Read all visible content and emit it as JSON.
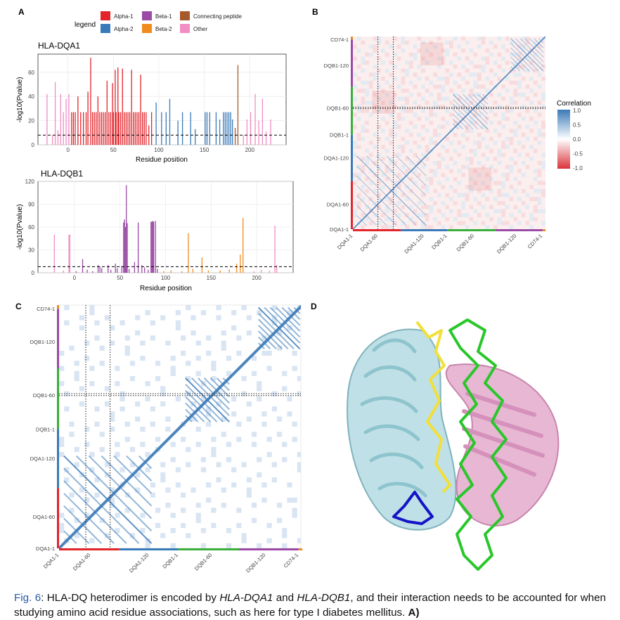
{
  "panel_labels": {
    "a": "A",
    "b": "B",
    "c": "C",
    "d": "D"
  },
  "legend": {
    "title": "legend",
    "items": [
      {
        "label": "Alpha-1",
        "color": "#e3242b"
      },
      {
        "label": "Alpha-2",
        "color": "#3a7ab8"
      },
      {
        "label": "Beta-1",
        "color": "#9b4ba6"
      },
      {
        "label": "Beta-2",
        "color": "#f08c1e"
      },
      {
        "label": "Connecting peptide",
        "color": "#a65a2c"
      },
      {
        "label": "Other",
        "color": "#f28dc4"
      }
    ]
  },
  "chart_data": [
    {
      "id": "dqa1",
      "type": "bar",
      "title": "HLA-DQA1",
      "xlabel": "Residue position",
      "ylabel": "-log10(Pvalue)",
      "xlim": [
        -33,
        240
      ],
      "ylim": [
        0,
        75
      ],
      "xticks": [
        0,
        50,
        100,
        150,
        200
      ],
      "yticks": [
        0,
        20,
        40,
        60
      ],
      "threshold": 8,
      "bars": [
        {
          "x": -23,
          "v": 42,
          "r": "Other"
        },
        {
          "x": -17,
          "v": 8,
          "r": "Other"
        },
        {
          "x": -14,
          "v": 52,
          "r": "Other"
        },
        {
          "x": -11,
          "v": 12,
          "r": "Other"
        },
        {
          "x": -8,
          "v": 42,
          "r": "Other"
        },
        {
          "x": -5,
          "v": 27,
          "r": "Other"
        },
        {
          "x": -2,
          "v": 38,
          "r": "Other"
        },
        {
          "x": 1,
          "v": 42,
          "r": "Other"
        },
        {
          "x": 4,
          "v": 27,
          "r": "Alpha-1"
        },
        {
          "x": 6,
          "v": 27,
          "r": "Alpha-1"
        },
        {
          "x": 8,
          "v": 27,
          "r": "Alpha-1"
        },
        {
          "x": 11,
          "v": 40,
          "r": "Alpha-1"
        },
        {
          "x": 14,
          "v": 27,
          "r": "Alpha-1"
        },
        {
          "x": 17,
          "v": 27,
          "r": "Alpha-1"
        },
        {
          "x": 20,
          "v": 27,
          "r": "Alpha-1"
        },
        {
          "x": 22,
          "v": 44,
          "r": "Alpha-1"
        },
        {
          "x": 25,
          "v": 72,
          "r": "Alpha-1"
        },
        {
          "x": 27,
          "v": 27,
          "r": "Alpha-1"
        },
        {
          "x": 29,
          "v": 27,
          "r": "Alpha-1"
        },
        {
          "x": 31,
          "v": 27,
          "r": "Alpha-1"
        },
        {
          "x": 33,
          "v": 40,
          "r": "Alpha-1"
        },
        {
          "x": 35,
          "v": 27,
          "r": "Alpha-1"
        },
        {
          "x": 37,
          "v": 27,
          "r": "Alpha-1"
        },
        {
          "x": 39,
          "v": 27,
          "r": "Alpha-1"
        },
        {
          "x": 41,
          "v": 27,
          "r": "Alpha-1"
        },
        {
          "x": 43,
          "v": 53,
          "r": "Alpha-1"
        },
        {
          "x": 45,
          "v": 27,
          "r": "Alpha-1"
        },
        {
          "x": 47,
          "v": 27,
          "r": "Alpha-1"
        },
        {
          "x": 49,
          "v": 51,
          "r": "Alpha-1"
        },
        {
          "x": 50,
          "v": 27,
          "r": "Alpha-1"
        },
        {
          "x": 52,
          "v": 62,
          "r": "Alpha-1"
        },
        {
          "x": 53,
          "v": 27,
          "r": "Alpha-1"
        },
        {
          "x": 55,
          "v": 64,
          "r": "Alpha-1"
        },
        {
          "x": 56,
          "v": 27,
          "r": "Alpha-1"
        },
        {
          "x": 58,
          "v": 27,
          "r": "Alpha-1"
        },
        {
          "x": 60,
          "v": 63,
          "r": "Alpha-1"
        },
        {
          "x": 62,
          "v": 27,
          "r": "Alpha-1"
        },
        {
          "x": 64,
          "v": 27,
          "r": "Alpha-1"
        },
        {
          "x": 66,
          "v": 27,
          "r": "Alpha-1"
        },
        {
          "x": 68,
          "v": 27,
          "r": "Alpha-1"
        },
        {
          "x": 70,
          "v": 62,
          "r": "Alpha-1"
        },
        {
          "x": 72,
          "v": 27,
          "r": "Alpha-1"
        },
        {
          "x": 74,
          "v": 27,
          "r": "Alpha-1"
        },
        {
          "x": 76,
          "v": 27,
          "r": "Alpha-1"
        },
        {
          "x": 78,
          "v": 27,
          "r": "Alpha-1"
        },
        {
          "x": 80,
          "v": 58,
          "r": "Alpha-1"
        },
        {
          "x": 82,
          "v": 27,
          "r": "Alpha-1"
        },
        {
          "x": 84,
          "v": 27,
          "r": "Alpha-1"
        },
        {
          "x": 86,
          "v": 27,
          "r": "Alpha-1"
        },
        {
          "x": 89,
          "v": 16,
          "r": "Alpha-1"
        },
        {
          "x": 92,
          "v": 27,
          "r": "Alpha-1"
        },
        {
          "x": 97,
          "v": 35,
          "r": "Alpha-2"
        },
        {
          "x": 103,
          "v": 27,
          "r": "Alpha-2"
        },
        {
          "x": 108,
          "v": 27,
          "r": "Alpha-2"
        },
        {
          "x": 112,
          "v": 38,
          "r": "Alpha-2"
        },
        {
          "x": 121,
          "v": 20,
          "r": "Alpha-2"
        },
        {
          "x": 126,
          "v": 27,
          "r": "Alpha-2"
        },
        {
          "x": 135,
          "v": 27,
          "r": "Alpha-2"
        },
        {
          "x": 140,
          "v": 13,
          "r": "Alpha-2"
        },
        {
          "x": 151,
          "v": 27,
          "r": "Alpha-2"
        },
        {
          "x": 153,
          "v": 27,
          "r": "Alpha-2"
        },
        {
          "x": 156,
          "v": 27,
          "r": "Alpha-2"
        },
        {
          "x": 163,
          "v": 27,
          "r": "Alpha-2"
        },
        {
          "x": 167,
          "v": 21,
          "r": "Alpha-2"
        },
        {
          "x": 171,
          "v": 27,
          "r": "Alpha-2"
        },
        {
          "x": 173,
          "v": 27,
          "r": "Alpha-2"
        },
        {
          "x": 175,
          "v": 27,
          "r": "Alpha-2"
        },
        {
          "x": 177,
          "v": 27,
          "r": "Alpha-2"
        },
        {
          "x": 179,
          "v": 27,
          "r": "Alpha-2"
        },
        {
          "x": 181,
          "v": 21,
          "r": "Alpha-2"
        },
        {
          "x": 184,
          "v": 14,
          "r": "Connecting peptide"
        },
        {
          "x": 187,
          "v": 66,
          "r": "Connecting peptide"
        },
        {
          "x": 193,
          "v": 8,
          "r": "Other"
        },
        {
          "x": 197,
          "v": 21,
          "r": "Other"
        },
        {
          "x": 201,
          "v": 27,
          "r": "Other"
        },
        {
          "x": 206,
          "v": 42,
          "r": "Other"
        },
        {
          "x": 210,
          "v": 20,
          "r": "Other"
        },
        {
          "x": 214,
          "v": 38,
          "r": "Other"
        },
        {
          "x": 218,
          "v": 11,
          "r": "Other"
        },
        {
          "x": 223,
          "v": 21,
          "r": "Other"
        }
      ]
    },
    {
      "id": "dqb1",
      "type": "bar",
      "title": "HLA-DQB1",
      "xlabel": "Residue position",
      "ylabel": "-log10(Pvalue)",
      "xlim": [
        -40,
        240
      ],
      "ylim": [
        0,
        120
      ],
      "xticks": [
        0,
        50,
        100,
        150,
        200
      ],
      "yticks": [
        0,
        30,
        60,
        90,
        120
      ],
      "threshold": 8,
      "bars": [
        {
          "x": -22,
          "v": 50,
          "r": "Other"
        },
        {
          "x": -12,
          "v": 3,
          "r": "Other"
        },
        {
          "x": -6,
          "v": 50,
          "r": "Other"
        },
        {
          "x": -5,
          "v": 50,
          "r": "Other"
        },
        {
          "x": 2,
          "v": 2,
          "r": "Beta-1"
        },
        {
          "x": 9,
          "v": 18,
          "r": "Beta-1"
        },
        {
          "x": 14,
          "v": 4,
          "r": "Beta-1"
        },
        {
          "x": 20,
          "v": 2,
          "r": "Beta-1"
        },
        {
          "x": 26,
          "v": 10,
          "r": "Beta-1"
        },
        {
          "x": 28,
          "v": 8,
          "r": "Beta-1"
        },
        {
          "x": 30,
          "v": 6,
          "r": "Beta-1"
        },
        {
          "x": 37,
          "v": 10,
          "r": "Beta-1"
        },
        {
          "x": 40,
          "v": 4,
          "r": "Beta-1"
        },
        {
          "x": 45,
          "v": 12,
          "r": "Beta-1"
        },
        {
          "x": 47,
          "v": 6,
          "r": "Beta-1"
        },
        {
          "x": 52,
          "v": 9,
          "r": "Beta-1"
        },
        {
          "x": 54,
          "v": 66,
          "r": "Beta-1"
        },
        {
          "x": 55,
          "v": 70,
          "r": "Beta-1"
        },
        {
          "x": 56,
          "v": 60,
          "r": "Beta-1"
        },
        {
          "x": 57,
          "v": 115,
          "r": "Beta-1"
        },
        {
          "x": 58,
          "v": 65,
          "r": "Beta-1"
        },
        {
          "x": 60,
          "v": 5,
          "r": "Beta-1"
        },
        {
          "x": 66,
          "v": 14,
          "r": "Beta-1"
        },
        {
          "x": 70,
          "v": 66,
          "r": "Beta-1"
        },
        {
          "x": 74,
          "v": 10,
          "r": "Beta-1"
        },
        {
          "x": 77,
          "v": 7,
          "r": "Beta-1"
        },
        {
          "x": 81,
          "v": 4,
          "r": "Beta-1"
        },
        {
          "x": 84,
          "v": 67,
          "r": "Beta-1"
        },
        {
          "x": 85,
          "v": 67,
          "r": "Beta-1"
        },
        {
          "x": 86,
          "v": 68,
          "r": "Beta-1"
        },
        {
          "x": 87,
          "v": 67,
          "r": "Beta-1"
        },
        {
          "x": 89,
          "v": 68,
          "r": "Beta-1"
        },
        {
          "x": 91,
          "v": 5,
          "r": "Beta-1"
        },
        {
          "x": 98,
          "v": 2,
          "r": "Beta-2"
        },
        {
          "x": 106,
          "v": 3,
          "r": "Beta-2"
        },
        {
          "x": 118,
          "v": 2,
          "r": "Beta-2"
        },
        {
          "x": 125,
          "v": 52,
          "r": "Beta-2"
        },
        {
          "x": 130,
          "v": 5,
          "r": "Beta-2"
        },
        {
          "x": 140,
          "v": 20,
          "r": "Beta-2"
        },
        {
          "x": 147,
          "v": 3,
          "r": "Beta-2"
        },
        {
          "x": 160,
          "v": 3,
          "r": "Beta-2"
        },
        {
          "x": 170,
          "v": 4,
          "r": "Beta-2"
        },
        {
          "x": 178,
          "v": 12,
          "r": "Beta-2"
        },
        {
          "x": 182,
          "v": 24,
          "r": "Beta-2"
        },
        {
          "x": 185,
          "v": 72,
          "r": "Beta-2"
        },
        {
          "x": 197,
          "v": 2,
          "r": "Other"
        },
        {
          "x": 205,
          "v": 4,
          "r": "Other"
        },
        {
          "x": 214,
          "v": 3,
          "r": "Other"
        },
        {
          "x": 220,
          "v": 62,
          "r": "Other"
        },
        {
          "x": 222,
          "v": 10,
          "r": "Other"
        }
      ]
    },
    {
      "id": "corr_b",
      "type": "heatmap",
      "xticks": [
        "DQA1-1",
        "DQA1-60",
        "DQA1-120",
        "DQB1-1",
        "DQB1-60",
        "DQB1-120",
        "CD74-1"
      ],
      "yticks": [
        "DQA1-1",
        "DQA1-60",
        "DQA1-120",
        "DQB1-1",
        "DQB1-60",
        "DQB1-120",
        "CD74-1"
      ],
      "colorbar": {
        "title": "Correlation",
        "ticks": [
          "1.0",
          "0.5",
          "0.0",
          "-0.5",
          "-1.0"
        ],
        "range": [
          -1,
          1
        ]
      }
    },
    {
      "id": "corr_c",
      "type": "heatmap",
      "xticks": [
        "DQA1-1",
        "DQA1-60",
        "DQA1-120",
        "DQB1-1",
        "DQB1-60",
        "DQB1-120",
        "CD74-1"
      ],
      "yticks": [
        "DQA1-1",
        "DQA1-60",
        "DQA1-120",
        "DQB1-1",
        "DQB1-60",
        "DQB1-120",
        "CD74-1"
      ]
    }
  ],
  "caption": {
    "figure_label": "Fig. 6",
    "part1": ": HLA-DQ heterodimer is encoded by ",
    "gene1": "HLA-DQA1",
    "part2": " and ",
    "gene2": "HLA-DQB1",
    "part3": ", and their interaction needs to be accounted for when studying amino acid residue associations, such as here for type I diabetes mellitus. ",
    "tail": "A)"
  }
}
